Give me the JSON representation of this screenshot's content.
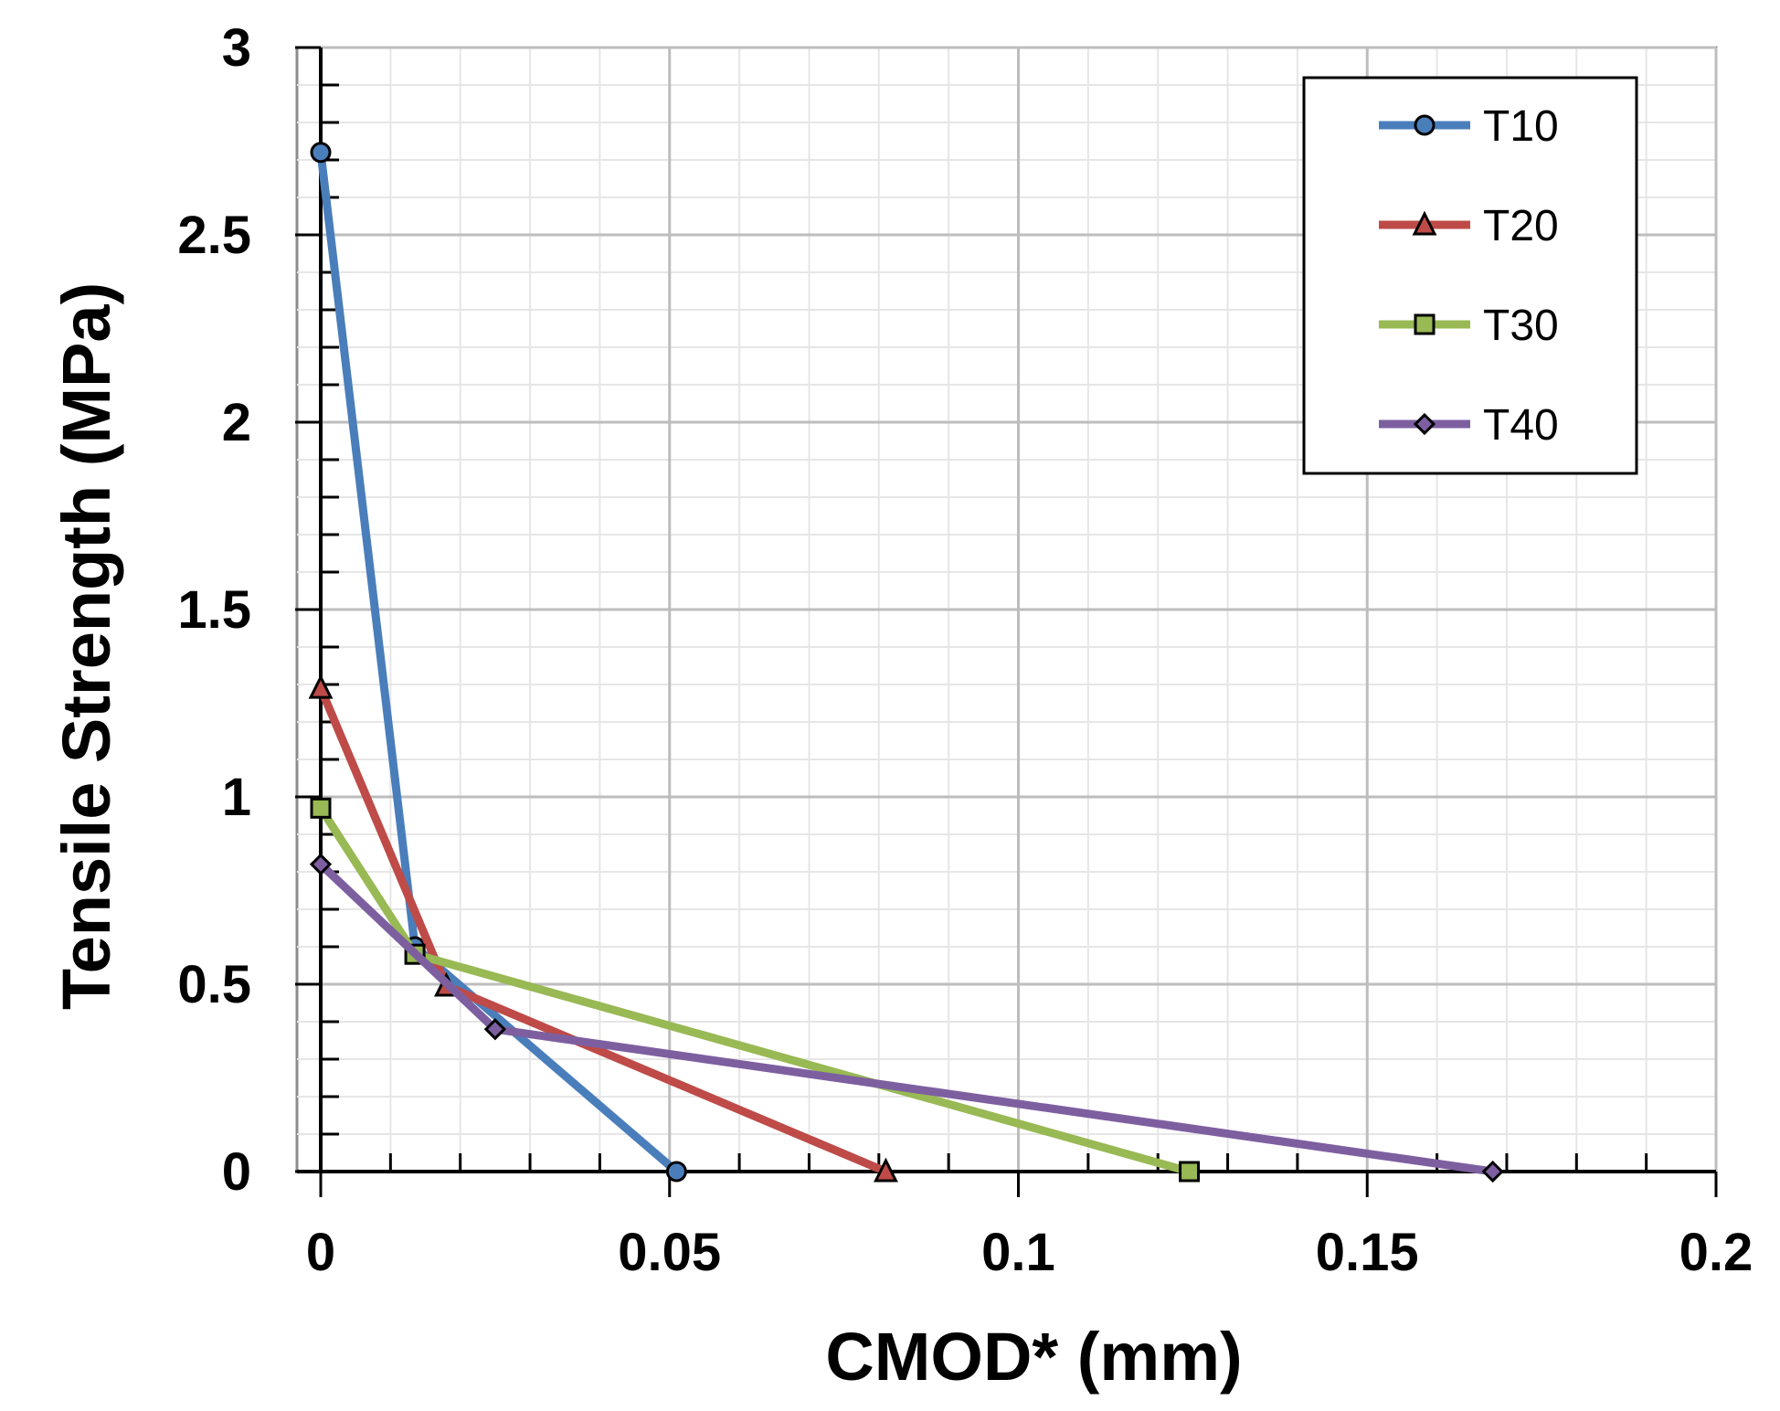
{
  "chart_data": {
    "type": "line",
    "xlabel": "CMOD* (mm)",
    "ylabel": "Tensile Strength (MPa)",
    "xlim": [
      0,
      0.2
    ],
    "ylim": [
      0,
      3
    ],
    "x_ticks": [
      "0",
      "0.05",
      "0.1",
      "0.15",
      "0.2"
    ],
    "y_ticks": [
      "0",
      "0.5",
      "1",
      "1.5",
      "2",
      "2.5",
      "3"
    ],
    "grid": "major and minor",
    "legend_position": "top-right",
    "series": [
      {
        "name": "T10",
        "color": "#4a7ebb",
        "marker": "circle",
        "x": [
          0,
          0.0135,
          0.051
        ],
        "y": [
          2.72,
          0.6,
          0.0
        ]
      },
      {
        "name": "T20",
        "color": "#be4b48",
        "marker": "triangle",
        "x": [
          0,
          0.018,
          0.081
        ],
        "y": [
          1.29,
          0.495,
          0.0
        ]
      },
      {
        "name": "T30",
        "color": "#98b954",
        "marker": "square",
        "x": [
          0,
          0.0135,
          0.1245
        ],
        "y": [
          0.97,
          0.58,
          0.0
        ]
      },
      {
        "name": "T40",
        "color": "#7d5fa0",
        "marker": "diamond",
        "x": [
          0,
          0.025,
          0.168
        ],
        "y": [
          0.82,
          0.38,
          0.0
        ]
      }
    ]
  }
}
